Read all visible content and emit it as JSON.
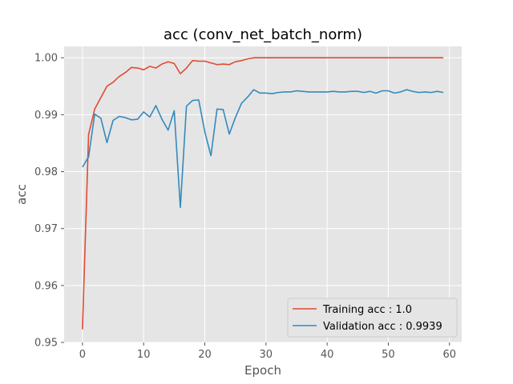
{
  "chart_data": {
    "type": "line",
    "title": "acc (conv_net_batch_norm)",
    "xlabel": "Epoch",
    "ylabel": "acc",
    "xlim": [
      -3,
      62
    ],
    "ylim": [
      0.95,
      1.002
    ],
    "xticks": [
      0,
      10,
      20,
      30,
      40,
      50,
      60
    ],
    "yticks": [
      0.95,
      0.96,
      0.97,
      0.98,
      0.99,
      1.0
    ],
    "ytick_labels": [
      "0.95",
      "0.96",
      "0.97",
      "0.98",
      "0.99",
      "1.00"
    ],
    "grid": true,
    "legend_position": "bottom-right",
    "x": [
      0,
      1,
      2,
      3,
      4,
      5,
      6,
      7,
      8,
      9,
      10,
      11,
      12,
      13,
      14,
      15,
      16,
      17,
      18,
      19,
      20,
      21,
      22,
      23,
      24,
      25,
      26,
      27,
      28,
      29,
      30,
      31,
      32,
      33,
      34,
      35,
      36,
      37,
      38,
      39,
      40,
      41,
      42,
      43,
      44,
      45,
      46,
      47,
      48,
      49,
      50,
      51,
      52,
      53,
      54,
      55,
      56,
      57,
      58,
      59
    ],
    "series": [
      {
        "name": "Training acc : 1.0",
        "color": "#E24A33",
        "values": [
          0.9523,
          0.9865,
          0.991,
          0.993,
          0.995,
          0.9957,
          0.9967,
          0.9974,
          0.9983,
          0.9982,
          0.9979,
          0.9985,
          0.9982,
          0.9989,
          0.9993,
          0.999,
          0.9972,
          0.9982,
          0.9995,
          0.9994,
          0.9994,
          0.9991,
          0.9988,
          0.9989,
          0.9988,
          0.9993,
          0.9995,
          0.9998,
          1.0,
          1.0,
          1.0,
          1.0,
          1.0,
          1.0,
          1.0,
          1.0,
          1.0,
          1.0,
          1.0,
          1.0,
          1.0,
          1.0,
          1.0,
          1.0,
          1.0,
          1.0,
          1.0,
          1.0,
          1.0,
          1.0,
          1.0,
          1.0,
          1.0,
          1.0,
          1.0,
          1.0,
          1.0,
          1.0,
          1.0,
          1.0
        ]
      },
      {
        "name": "Validation acc : 0.9939",
        "color": "#348ABD",
        "values": [
          0.9808,
          0.9826,
          0.9901,
          0.9894,
          0.9851,
          0.989,
          0.9897,
          0.9895,
          0.9891,
          0.9892,
          0.9905,
          0.9896,
          0.9916,
          0.9892,
          0.9873,
          0.9907,
          0.9737,
          0.9915,
          0.9925,
          0.9926,
          0.987,
          0.9828,
          0.991,
          0.9909,
          0.9866,
          0.9895,
          0.992,
          0.9931,
          0.9944,
          0.9938,
          0.9938,
          0.9937,
          0.9939,
          0.994,
          0.994,
          0.9942,
          0.9941,
          0.994,
          0.994,
          0.994,
          0.994,
          0.9941,
          0.994,
          0.994,
          0.9941,
          0.9941,
          0.9939,
          0.9941,
          0.9938,
          0.9942,
          0.9942,
          0.9938,
          0.994,
          0.9944,
          0.9941,
          0.9939,
          0.994,
          0.9939,
          0.9941,
          0.9939
        ]
      }
    ]
  }
}
